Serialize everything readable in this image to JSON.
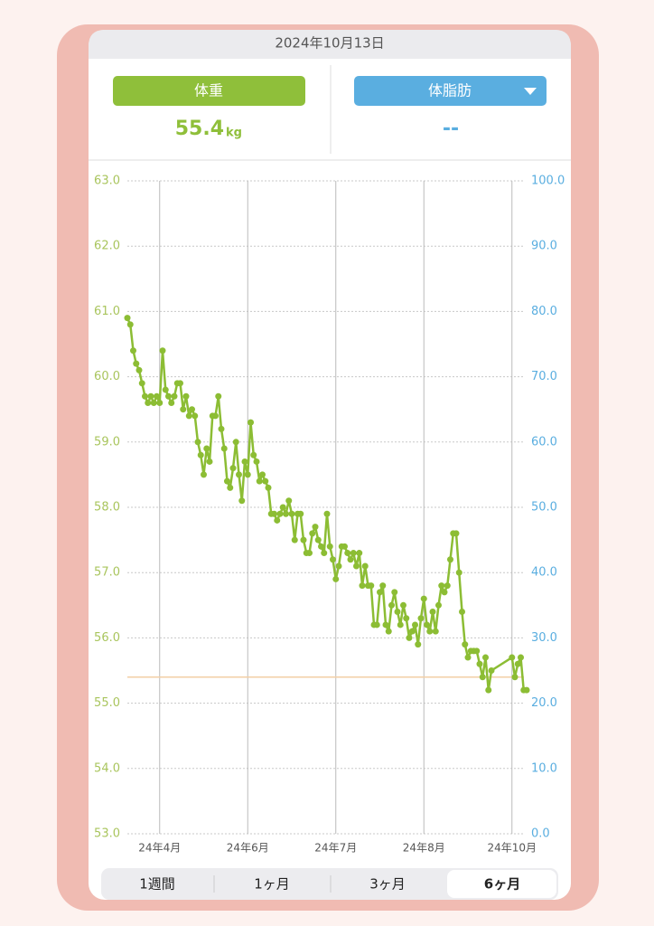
{
  "header": {
    "date": "2024年10月13日"
  },
  "metrics": {
    "weight": {
      "button": "体重",
      "value": "55.4",
      "unit": "kg"
    },
    "body_fat": {
      "button": "体脂肪",
      "value": "--"
    }
  },
  "tabs": [
    "1週間",
    "1ヶ月",
    "3ヶ月",
    "6ヶ月"
  ],
  "chart_data": {
    "type": "line",
    "color": "#8cbd34",
    "x": [
      0,
      1,
      2,
      3,
      4,
      5,
      6,
      7,
      8,
      9,
      10,
      11,
      12,
      13,
      14,
      15,
      16,
      17,
      18,
      19,
      20,
      21,
      22,
      23,
      24,
      25,
      26,
      27,
      28,
      29,
      30,
      31,
      32,
      33,
      34,
      35,
      36,
      37,
      38,
      39,
      40,
      41,
      42,
      43,
      44,
      45,
      46,
      47,
      48,
      49,
      50,
      51,
      52,
      53,
      54,
      55,
      56,
      57,
      58,
      59,
      60,
      61,
      62,
      63,
      64,
      65,
      66,
      67,
      68,
      69,
      70,
      71,
      72,
      73,
      74,
      75,
      76,
      77,
      78,
      79,
      80,
      81,
      82,
      83,
      84,
      85,
      86,
      87,
      88,
      89,
      90,
      91,
      92,
      93,
      94,
      95,
      96,
      97,
      98,
      99,
      100,
      101,
      102,
      103,
      104,
      105,
      106,
      107,
      108,
      109,
      110,
      111,
      112,
      113,
      114,
      115,
      116,
      117,
      118,
      119,
      120,
      121,
      122,
      123,
      124,
      131,
      132,
      133,
      134,
      135,
      136
    ],
    "values": [
      60.9,
      60.8,
      60.4,
      60.2,
      60.1,
      59.9,
      59.7,
      59.6,
      59.7,
      59.6,
      59.7,
      59.6,
      60.4,
      59.8,
      59.7,
      59.6,
      59.7,
      59.9,
      59.9,
      59.5,
      59.7,
      59.4,
      59.5,
      59.4,
      59.0,
      58.8,
      58.5,
      58.9,
      58.7,
      59.4,
      59.4,
      59.7,
      59.2,
      58.9,
      58.4,
      58.3,
      58.6,
      59.0,
      58.5,
      58.1,
      58.7,
      58.5,
      59.3,
      58.8,
      58.7,
      58.4,
      58.5,
      58.4,
      58.3,
      57.9,
      57.9,
      57.8,
      57.9,
      58.0,
      57.9,
      58.1,
      57.9,
      57.5,
      57.9,
      57.9,
      57.5,
      57.3,
      57.3,
      57.6,
      57.7,
      57.5,
      57.4,
      57.3,
      57.9,
      57.4,
      57.2,
      56.9,
      57.1,
      57.4,
      57.4,
      57.3,
      57.2,
      57.3,
      57.1,
      57.3,
      56.8,
      57.1,
      56.8,
      56.8,
      56.2,
      56.2,
      56.7,
      56.8,
      56.2,
      56.1,
      56.5,
      56.7,
      56.4,
      56.2,
      56.5,
      56.3,
      56.0,
      56.1,
      56.2,
      55.9,
      56.3,
      56.6,
      56.2,
      56.1,
      56.4,
      56.1,
      56.5,
      56.8,
      56.7,
      56.8,
      57.2,
      57.6,
      57.6,
      57.0,
      56.4,
      55.9,
      55.7,
      55.8,
      55.8,
      55.8,
      55.6,
      55.4,
      55.7,
      55.2,
      55.5,
      55.7,
      55.4,
      55.6,
      55.7,
      55.2,
      55.2
    ],
    "target": 55.4,
    "target_color": "#f3cfa6",
    "xlim": [
      0,
      136
    ],
    "xticks": [
      {
        "value": 11,
        "label": "24年4月"
      },
      {
        "value": 41,
        "label": "24年6月"
      },
      {
        "value": 71,
        "label": "24年7月"
      },
      {
        "value": 101,
        "label": "24年8月"
      },
      {
        "value": 131,
        "label": "24年10月"
      }
    ],
    "ylim": [
      53,
      63
    ],
    "yticks": [
      {
        "value": 53,
        "label": "53.0"
      },
      {
        "value": 54,
        "label": "54.0"
      },
      {
        "value": 55,
        "label": "55.0"
      },
      {
        "value": 56,
        "label": "56.0"
      },
      {
        "value": 57,
        "label": "57.0"
      },
      {
        "value": 58,
        "label": "58.0"
      },
      {
        "value": 59,
        "label": "59.0"
      },
      {
        "value": 60,
        "label": "60.0"
      },
      {
        "value": 61,
        "label": "61.0"
      },
      {
        "value": 62,
        "label": "62.0"
      },
      {
        "value": 63,
        "label": "63.0"
      }
    ],
    "y2lim": [
      0,
      100
    ],
    "y2ticks": [
      {
        "value": 0,
        "label": "0.0"
      },
      {
        "value": 10,
        "label": "10.0"
      },
      {
        "value": 20,
        "label": "20.0"
      },
      {
        "value": 30,
        "label": "30.0"
      },
      {
        "value": 40,
        "label": "40.0"
      },
      {
        "value": 50,
        "label": "50.0"
      },
      {
        "value": 60,
        "label": "60.0"
      },
      {
        "value": 70,
        "label": "70.0"
      },
      {
        "value": 80,
        "label": "80.0"
      },
      {
        "value": 90,
        "label": "90.0"
      },
      {
        "value": 100,
        "label": "100.0"
      }
    ],
    "grid": true
  }
}
